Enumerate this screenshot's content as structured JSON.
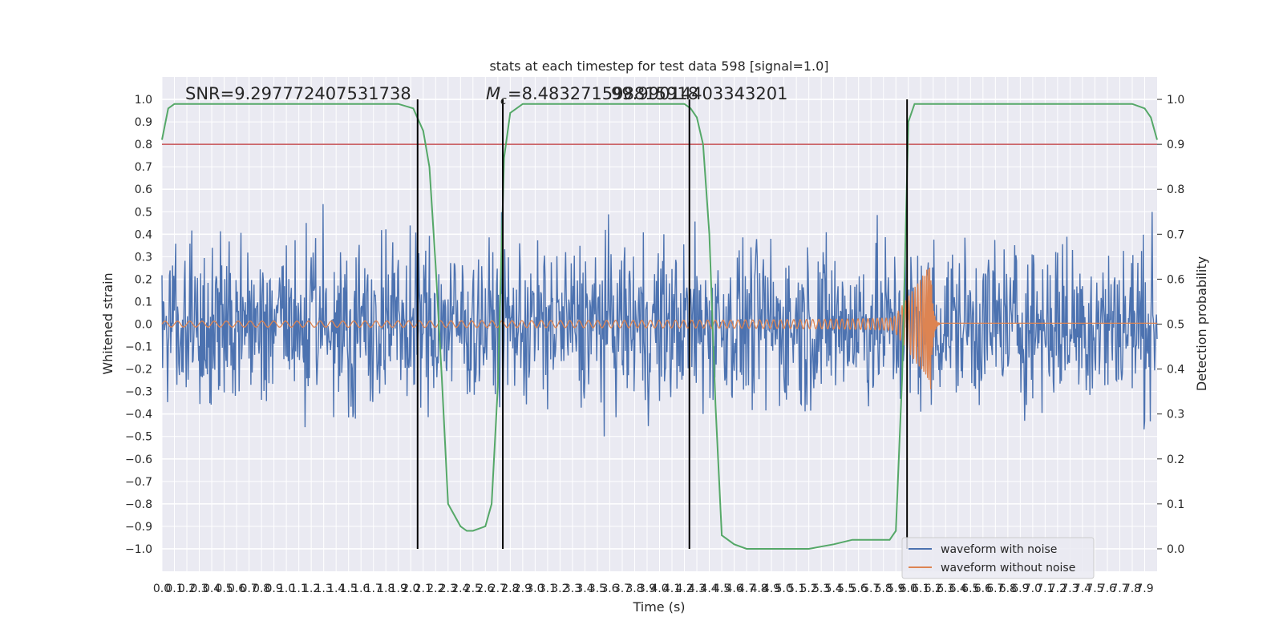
{
  "chart_data": {
    "type": "line",
    "title": "stats at each timestep for test data 598 [signal=1.0]",
    "xlabel": "Time (s)",
    "ylabel_left": "Whitened strain",
    "ylabel_right": "Detection probability",
    "xlim": [
      0.0,
      8.0
    ],
    "ylim_left": [
      -1.1,
      1.1
    ],
    "ylim_right": [
      -0.05,
      1.05
    ],
    "x_ticks": [
      "0.0",
      "0.1",
      "0.2",
      "0.3",
      "0.4",
      "0.5",
      "0.6",
      "0.7",
      "0.8",
      "0.9",
      "1.0",
      "1.1",
      "1.2",
      "1.3",
      "1.4",
      "1.5",
      "1.6",
      "1.7",
      "1.8",
      "1.9",
      "2.0",
      "2.1",
      "2.2",
      "2.3",
      "2.4",
      "2.5",
      "2.6",
      "2.7",
      "2.8",
      "2.9",
      "3.0",
      "3.1",
      "3.2",
      "3.3",
      "3.4",
      "3.5",
      "3.6",
      "3.7",
      "3.8",
      "3.9",
      "4.0",
      "4.1",
      "4.2",
      "4.3",
      "4.4",
      "4.5",
      "4.6",
      "4.7",
      "4.8",
      "4.9",
      "5.0",
      "5.1",
      "5.2",
      "5.3",
      "5.4",
      "5.5",
      "5.6",
      "5.7",
      "5.8",
      "5.9",
      "6.0",
      "6.1",
      "6.2",
      "6.3",
      "6.4",
      "6.5",
      "6.6",
      "6.7",
      "6.8",
      "6.9",
      "7.0",
      "7.1",
      "7.2",
      "7.3",
      "7.4",
      "7.5",
      "7.6",
      "7.7",
      "7.8",
      "7.9"
    ],
    "y_ticks_left": [
      "−1.0",
      "−0.9",
      "−0.8",
      "−0.7",
      "−0.6",
      "−0.5",
      "−0.4",
      "−0.3",
      "−0.2",
      "−0.1",
      "0.0",
      "0.1",
      "0.2",
      "0.3",
      "0.4",
      "0.5",
      "0.6",
      "0.7",
      "0.8",
      "0.9",
      "1.0"
    ],
    "y_ticks_right": [
      "0.0",
      "0.1",
      "0.2",
      "0.3",
      "0.4",
      "0.5",
      "0.6",
      "0.7",
      "0.8",
      "0.9",
      "1.0"
    ],
    "annotations": {
      "snr": "SNR=9.297772407531738",
      "mc": "=8.483271598815918",
      "mc_symbol": "M",
      "mc_subscript": "c",
      "overlap": "99.99014403343201"
    },
    "threshold": 0.9,
    "vertical_lines_x": [
      2.055,
      2.74,
      4.24,
      5.99
    ],
    "series": [
      {
        "name": "waveform with noise",
        "color": "#4c72b0"
      },
      {
        "name": "waveform without noise",
        "color": "#dd8452"
      },
      {
        "name": "detection probability",
        "color": "#55a868",
        "x": [
          0.0,
          0.05,
          0.1,
          0.2,
          0.3,
          0.5,
          1.0,
          1.5,
          1.9,
          2.02,
          2.1,
          2.15,
          2.2,
          2.25,
          2.3,
          2.4,
          2.45,
          2.5,
          2.6,
          2.65,
          2.7,
          2.75,
          2.8,
          2.9,
          3.0,
          3.5,
          4.0,
          4.2,
          4.25,
          4.3,
          4.35,
          4.4,
          4.45,
          4.5,
          4.6,
          4.7,
          4.8,
          5.0,
          5.2,
          5.4,
          5.55,
          5.7,
          5.8,
          5.85,
          5.9,
          5.95,
          6.0,
          6.05,
          6.1,
          6.2,
          6.5,
          7.0,
          7.5,
          7.8,
          7.9,
          7.95,
          8.0
        ],
        "y": [
          0.91,
          0.98,
          0.99,
          0.99,
          0.99,
          0.99,
          0.99,
          0.99,
          0.99,
          0.98,
          0.93,
          0.85,
          0.63,
          0.38,
          0.1,
          0.05,
          0.04,
          0.04,
          0.05,
          0.1,
          0.36,
          0.87,
          0.97,
          0.99,
          0.99,
          0.99,
          0.99,
          0.99,
          0.98,
          0.96,
          0.9,
          0.7,
          0.32,
          0.03,
          0.01,
          0.0,
          0.0,
          0.0,
          0.0,
          0.01,
          0.02,
          0.02,
          0.02,
          0.02,
          0.04,
          0.38,
          0.95,
          0.99,
          0.99,
          0.99,
          0.99,
          0.99,
          0.99,
          0.99,
          0.98,
          0.96,
          0.91
        ]
      }
    ],
    "threshold_color": "#c44e52",
    "legend": [
      "waveform with noise",
      "waveform without noise"
    ],
    "legend_position": "bottom-right",
    "grid": true
  }
}
